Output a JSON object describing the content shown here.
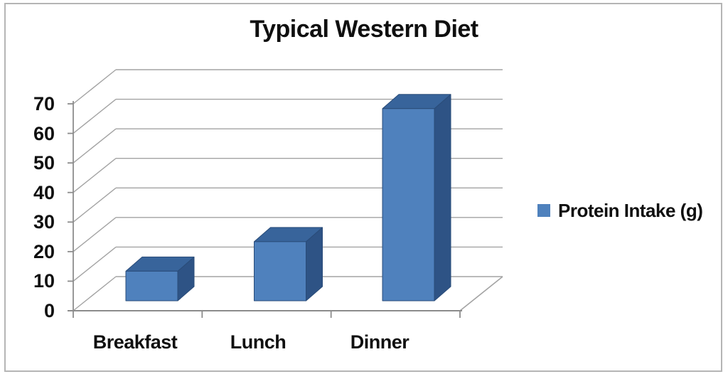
{
  "window": {
    "background": "#ffffff",
    "border_color": "#b5b5b5"
  },
  "chart": {
    "title": "Typical Western Diet",
    "colors": {
      "bar_front": "#4f81bd",
      "bar_top": "#38649b",
      "bar_side": "#2e5385",
      "bar_edge": "#2a4c79",
      "gridline": "#a3a3a3",
      "axis": "#8c8c8c",
      "text": "#0f0f0f"
    },
    "legend": {
      "label": "Protein Intake (g)",
      "marker_color": "#4f81bd"
    }
  },
  "chart_data": {
    "type": "bar",
    "projection": "3d",
    "title": "Typical Western Diet",
    "categories": [
      "Breakfast",
      "Lunch",
      "Dinner"
    ],
    "series": [
      {
        "name": "Protein Intake (g)",
        "values": [
          10,
          20,
          65
        ],
        "color": "#4f81bd"
      }
    ],
    "xlabel": "",
    "ylabel": "",
    "ylim": [
      0,
      70
    ],
    "yticks": [
      0,
      10,
      20,
      30,
      40,
      50,
      60,
      70
    ],
    "grid": true,
    "legend_position": "right"
  }
}
